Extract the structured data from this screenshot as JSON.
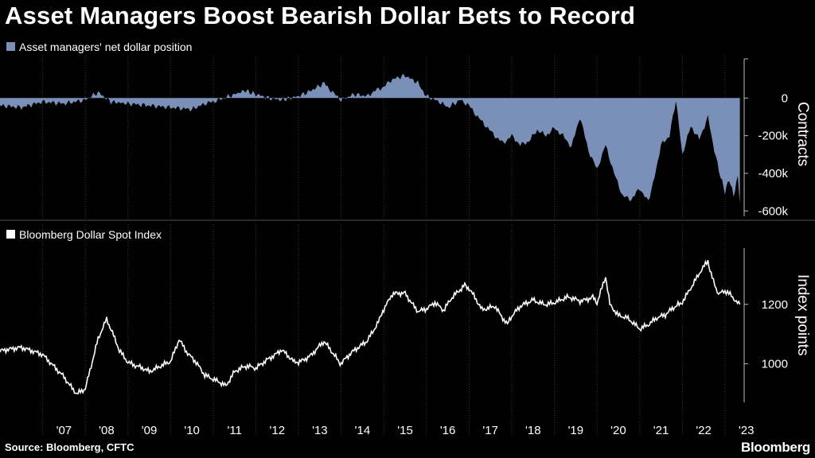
{
  "title": "Asset Managers Boost Bearish Dollar Bets to Record",
  "source": "Source: Bloomberg, CFTC",
  "brand": "Bloomberg",
  "colors": {
    "area": "#7b90b8",
    "line": "#ffffff",
    "grid": "#3a3a3a",
    "background": "#000000"
  },
  "x_labels": [
    "'07",
    "'08",
    "'09",
    "'10",
    "'11",
    "'12",
    "'13",
    "'14",
    "'15",
    "'16",
    "'17",
    "'18",
    "'19",
    "'20",
    "'21",
    "'22",
    "'23"
  ],
  "chart_data": [
    {
      "type": "area",
      "legend": "Asset managers' net dollar position",
      "ylabel": "Contracts",
      "ylim": [
        -620000,
        200000
      ],
      "yticks": [
        0,
        -200000,
        -400000,
        -600000
      ],
      "ytick_labels": [
        "0",
        "-200k",
        "-400k",
        "-600k"
      ],
      "x": [
        2006.0,
        2006.5,
        2007.0,
        2007.5,
        2008.0,
        2008.3,
        2008.6,
        2009.0,
        2009.5,
        2010.0,
        2010.5,
        2010.8,
        2011.0,
        2011.5,
        2011.75,
        2012.0,
        2012.3,
        2012.6,
        2013.0,
        2013.3,
        2013.6,
        2013.8,
        2014.0,
        2014.3,
        2014.6,
        2014.8,
        2015.0,
        2015.2,
        2015.5,
        2015.8,
        2016.0,
        2016.3,
        2016.5,
        2016.8,
        2017.0,
        2017.2,
        2017.4,
        2017.6,
        2017.8,
        2018.0,
        2018.2,
        2018.4,
        2018.6,
        2018.8,
        2019.0,
        2019.2,
        2019.4,
        2019.6,
        2019.8,
        2020.0,
        2020.2,
        2020.4,
        2020.6,
        2020.8,
        2021.0,
        2021.2,
        2021.35,
        2021.5,
        2021.7,
        2021.85,
        2022.0,
        2022.2,
        2022.4,
        2022.6,
        2022.75,
        2022.9,
        2023.0,
        2023.1,
        2023.2,
        2023.3,
        2023.35
      ],
      "y": [
        -40000,
        -50000,
        -20000,
        -30000,
        -10000,
        30000,
        -20000,
        -30000,
        -40000,
        -50000,
        -60000,
        -30000,
        -20000,
        20000,
        40000,
        20000,
        0,
        -10000,
        10000,
        40000,
        80000,
        30000,
        -10000,
        20000,
        10000,
        40000,
        60000,
        100000,
        120000,
        80000,
        10000,
        -20000,
        -50000,
        -10000,
        -40000,
        -100000,
        -150000,
        -200000,
        -240000,
        -200000,
        -250000,
        -230000,
        -170000,
        -200000,
        -160000,
        -200000,
        -260000,
        -100000,
        -280000,
        -380000,
        -250000,
        -400000,
        -520000,
        -540000,
        -480000,
        -550000,
        -420000,
        -250000,
        -200000,
        -10000,
        -300000,
        -150000,
        -220000,
        -100000,
        -280000,
        -420000,
        -500000,
        -430000,
        -520000,
        -420000,
        -560000
      ]
    },
    {
      "type": "line",
      "legend": "Bloomberg Dollar Spot Index",
      "ylabel": "Index points",
      "ylim": [
        870,
        1395
      ],
      "yticks": [
        1000,
        1200
      ],
      "ytick_labels": [
        "1000",
        "1200"
      ],
      "x": [
        2006.0,
        2006.5,
        2007.0,
        2007.5,
        2007.8,
        2008.0,
        2008.3,
        2008.5,
        2008.8,
        2009.0,
        2009.2,
        2009.5,
        2009.8,
        2010.0,
        2010.2,
        2010.4,
        2010.6,
        2010.8,
        2011.0,
        2011.3,
        2011.5,
        2011.8,
        2012.0,
        2012.3,
        2012.6,
        2012.9,
        2013.0,
        2013.3,
        2013.6,
        2013.9,
        2014.0,
        2014.3,
        2014.6,
        2014.9,
        2015.0,
        2015.2,
        2015.5,
        2015.8,
        2016.0,
        2016.2,
        2016.4,
        2016.6,
        2016.9,
        2017.0,
        2017.3,
        2017.6,
        2017.9,
        2018.0,
        2018.2,
        2018.5,
        2018.8,
        2019.0,
        2019.3,
        2019.6,
        2019.9,
        2020.0,
        2020.2,
        2020.3,
        2020.5,
        2020.7,
        2021.0,
        2021.2,
        2021.4,
        2021.6,
        2021.9,
        2022.0,
        2022.2,
        2022.4,
        2022.6,
        2022.7,
        2022.85,
        2023.0,
        2023.15,
        2023.35
      ],
      "y": [
        1040,
        1050,
        1030,
        960,
        900,
        920,
        1080,
        1150,
        1040,
        1000,
        990,
        970,
        1000,
        1010,
        1080,
        1030,
        1000,
        960,
        950,
        920,
        970,
        990,
        980,
        1020,
        1050,
        1000,
        1010,
        1030,
        1070,
        1020,
        1000,
        1040,
        1080,
        1150,
        1180,
        1230,
        1240,
        1180,
        1190,
        1210,
        1180,
        1220,
        1270,
        1250,
        1180,
        1200,
        1130,
        1160,
        1190,
        1220,
        1200,
        1210,
        1220,
        1210,
        1230,
        1200,
        1290,
        1200,
        1160,
        1150,
        1120,
        1130,
        1150,
        1160,
        1200,
        1210,
        1260,
        1310,
        1350,
        1290,
        1240,
        1240,
        1230,
        1200
      ]
    }
  ]
}
